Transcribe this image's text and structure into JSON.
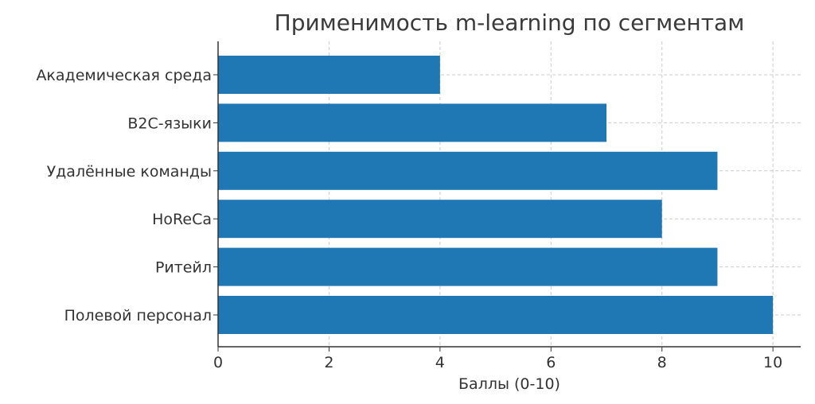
{
  "chart_data": {
    "type": "bar",
    "orientation": "horizontal",
    "title": "Применимость m-learning по сегментам",
    "xlabel": "Баллы (0-10)",
    "ylabel": "",
    "categories": [
      "Академическая среда",
      "B2C-языки",
      "Удалённые команды",
      "HoReCa",
      "Ритейл",
      "Полевой персонал"
    ],
    "values": [
      4,
      7,
      9,
      8,
      9,
      10
    ],
    "xlim": [
      0,
      10.5
    ],
    "xticks": [
      "0",
      "2",
      "4",
      "6",
      "8",
      "10"
    ],
    "grid": true,
    "bar_color": "#1f77b4"
  }
}
